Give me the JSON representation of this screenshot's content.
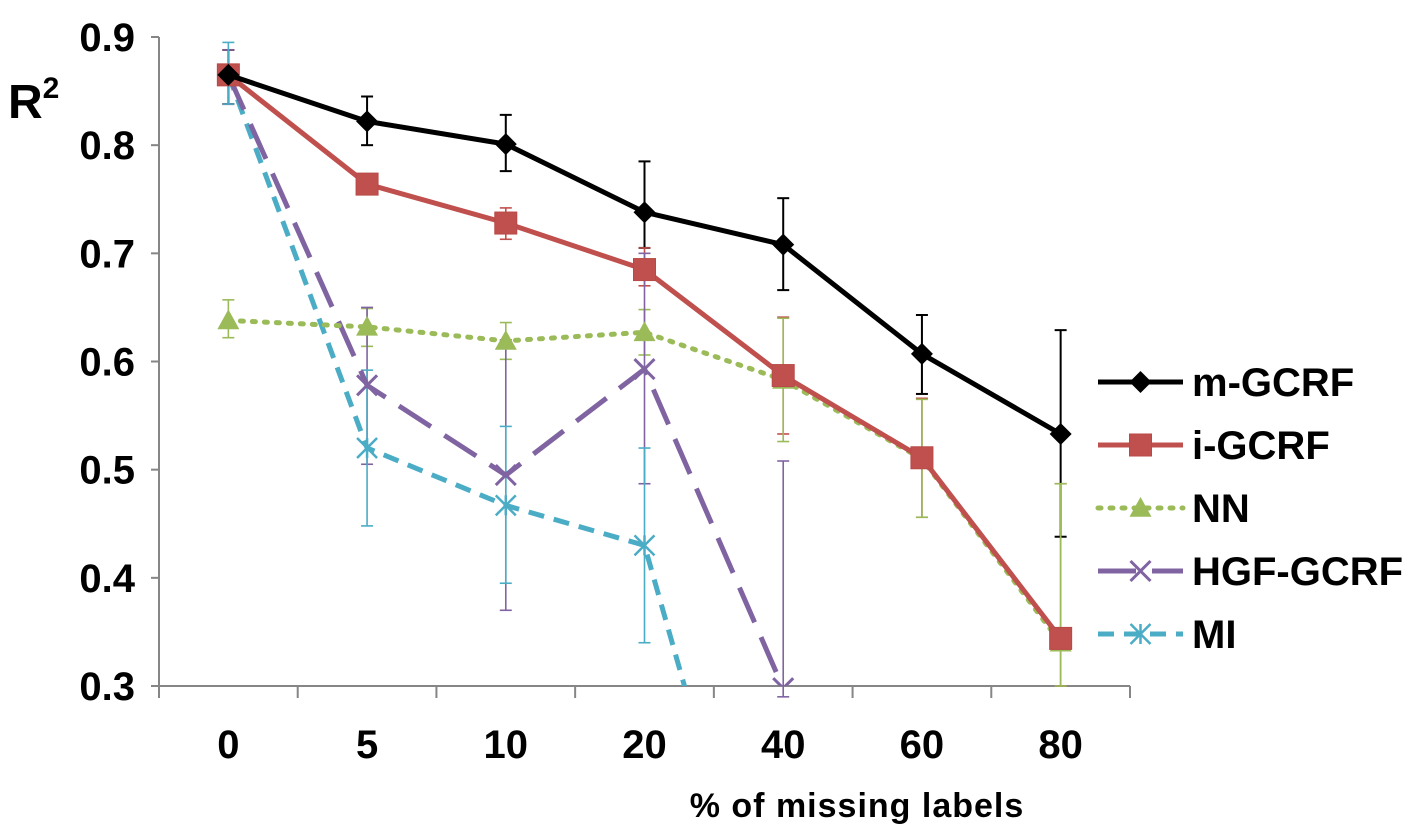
{
  "chart_data": {
    "type": "line",
    "title": "",
    "xlabel": "% of missing labels",
    "ylabel": "R",
    "ylabel_superscript": "2",
    "categories": [
      "0",
      "5",
      "10",
      "20",
      "40",
      "60",
      "80"
    ],
    "ylim": [
      0.3,
      0.9
    ],
    "yticks": [
      "0.9",
      "0.8",
      "0.7",
      "0.6",
      "0.5",
      "0.4",
      "0.3"
    ],
    "grid": false,
    "legend_position": "right",
    "series": [
      {
        "name": "m-GCRF",
        "color": "#000000",
        "style": "solid",
        "marker": "diamond",
        "values": [
          0.865,
          0.822,
          0.801,
          0.738,
          0.708,
          0.607,
          0.533
        ],
        "err_low": [
          0.838,
          0.8,
          0.776,
          0.705,
          0.666,
          0.57,
          0.438
        ],
        "err_high": [
          0.888,
          0.845,
          0.828,
          0.785,
          0.751,
          0.643,
          0.629
        ]
      },
      {
        "name": "i-GCRF",
        "color": "#c0504d",
        "style": "solid",
        "marker": "square",
        "values": [
          0.865,
          0.764,
          0.728,
          0.685,
          0.587,
          0.511,
          0.344
        ],
        "err_low": [
          0.838,
          0.76,
          0.713,
          0.67,
          0.533,
          0.456,
          0.3
        ],
        "err_high": [
          0.888,
          0.768,
          0.742,
          0.705,
          0.641,
          0.566,
          0.487
        ]
      },
      {
        "name": "NN",
        "color": "#9bbb59",
        "style": "dotted",
        "marker": "triangle",
        "values": [
          0.638,
          0.632,
          0.619,
          0.627,
          0.583,
          0.51,
          0.34
        ],
        "err_low": [
          0.622,
          0.614,
          0.602,
          0.606,
          0.526,
          0.456,
          0.3
        ],
        "err_high": [
          0.657,
          0.649,
          0.636,
          0.648,
          0.64,
          0.565,
          0.487
        ]
      },
      {
        "name": "HGF-GCRF",
        "color": "#8064a2",
        "style": "long-dash",
        "marker": "x",
        "values": [
          0.865,
          0.578,
          0.495,
          0.593,
          0.298,
          null,
          null
        ],
        "err_low": [
          0.838,
          0.505,
          0.37,
          0.487,
          0.29,
          null,
          null
        ],
        "err_high": [
          0.888,
          0.65,
          0.62,
          0.7,
          0.508,
          null,
          null
        ]
      },
      {
        "name": "MI",
        "color": "#4bacc6",
        "style": "dash",
        "marker": "asterisk",
        "values": [
          0.865,
          0.52,
          0.467,
          0.43,
          null,
          null,
          null
        ],
        "err_low": [
          0.838,
          0.448,
          0.395,
          0.34,
          null,
          null,
          null
        ],
        "err_high": [
          0.895,
          0.592,
          0.54,
          0.52,
          null,
          null,
          null
        ],
        "extends_below_axis": true
      }
    ]
  }
}
